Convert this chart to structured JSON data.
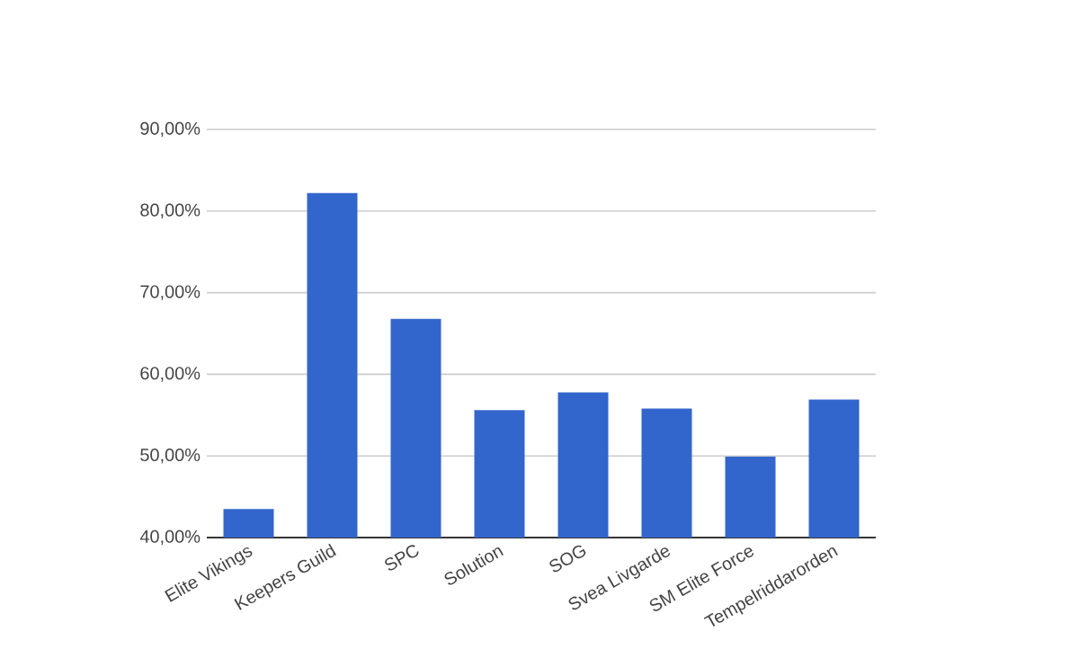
{
  "chart_data": {
    "type": "bar",
    "categories": [
      "Elite Vikings",
      "Keepers Guild",
      "SPC",
      "Solution",
      "SOG",
      "Svea Livgarde",
      "SM Elite Force",
      "Tempelriddarorden"
    ],
    "values": [
      43.5,
      82.2,
      66.8,
      55.6,
      57.8,
      55.8,
      49.9,
      56.9
    ],
    "color": "#3366cc",
    "ylim": [
      40,
      90
    ],
    "yticks": [
      {
        "value": 40,
        "label": "40,00%"
      },
      {
        "value": 50,
        "label": "50,00%"
      },
      {
        "value": 60,
        "label": "60,00%"
      },
      {
        "value": 70,
        "label": "70,00%"
      },
      {
        "value": 80,
        "label": "80,00%"
      },
      {
        "value": 90,
        "label": "90,00%"
      }
    ],
    "grid": "y"
  }
}
